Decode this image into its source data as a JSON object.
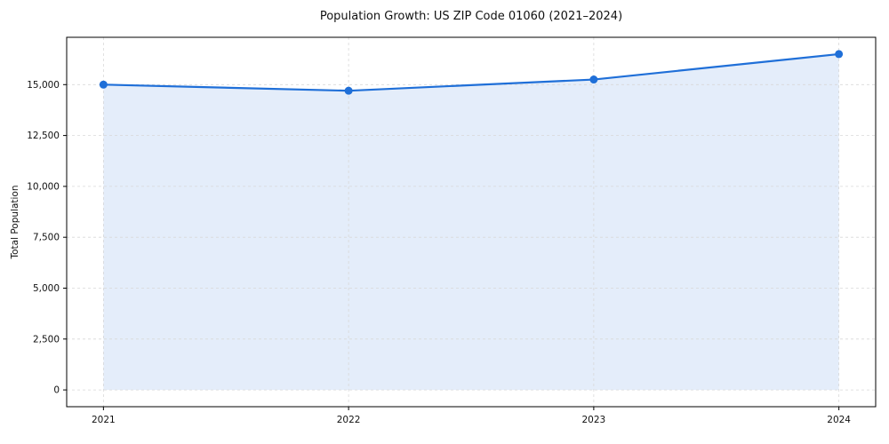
{
  "chart_data": {
    "type": "line",
    "title": "Population Growth: US ZIP Code 01060 (2021–2024)",
    "xlabel": "",
    "ylabel": "Total Population",
    "x": [
      2021,
      2022,
      2023,
      2024
    ],
    "xtick_labels": [
      "2021",
      "2022",
      "2023",
      "2024"
    ],
    "series": [
      {
        "name": "Total Population",
        "values": [
          15000,
          14700,
          15250,
          16500
        ]
      }
    ],
    "yticks": [
      0,
      2500,
      5000,
      7500,
      10000,
      12500,
      15000
    ],
    "ytick_labels": [
      "0",
      "2,500",
      "5,000",
      "7,500",
      "10,000",
      "12,500",
      "15,000"
    ],
    "xlim": [
      2020.85,
      2024.15
    ],
    "ylim": [
      -825,
      17325
    ],
    "grid": true,
    "grid_style": "dashed",
    "legend": "none",
    "area_fill": true,
    "marker": "circle",
    "colors": {
      "line": "#1f6fd8",
      "marker": "#1f6fd8",
      "fill": "#1f6fd8",
      "fill_opacity": "0.12",
      "grid": "#d8d8d8",
      "axis": "#000000",
      "text": "#111111",
      "background": "#ffffff"
    }
  }
}
